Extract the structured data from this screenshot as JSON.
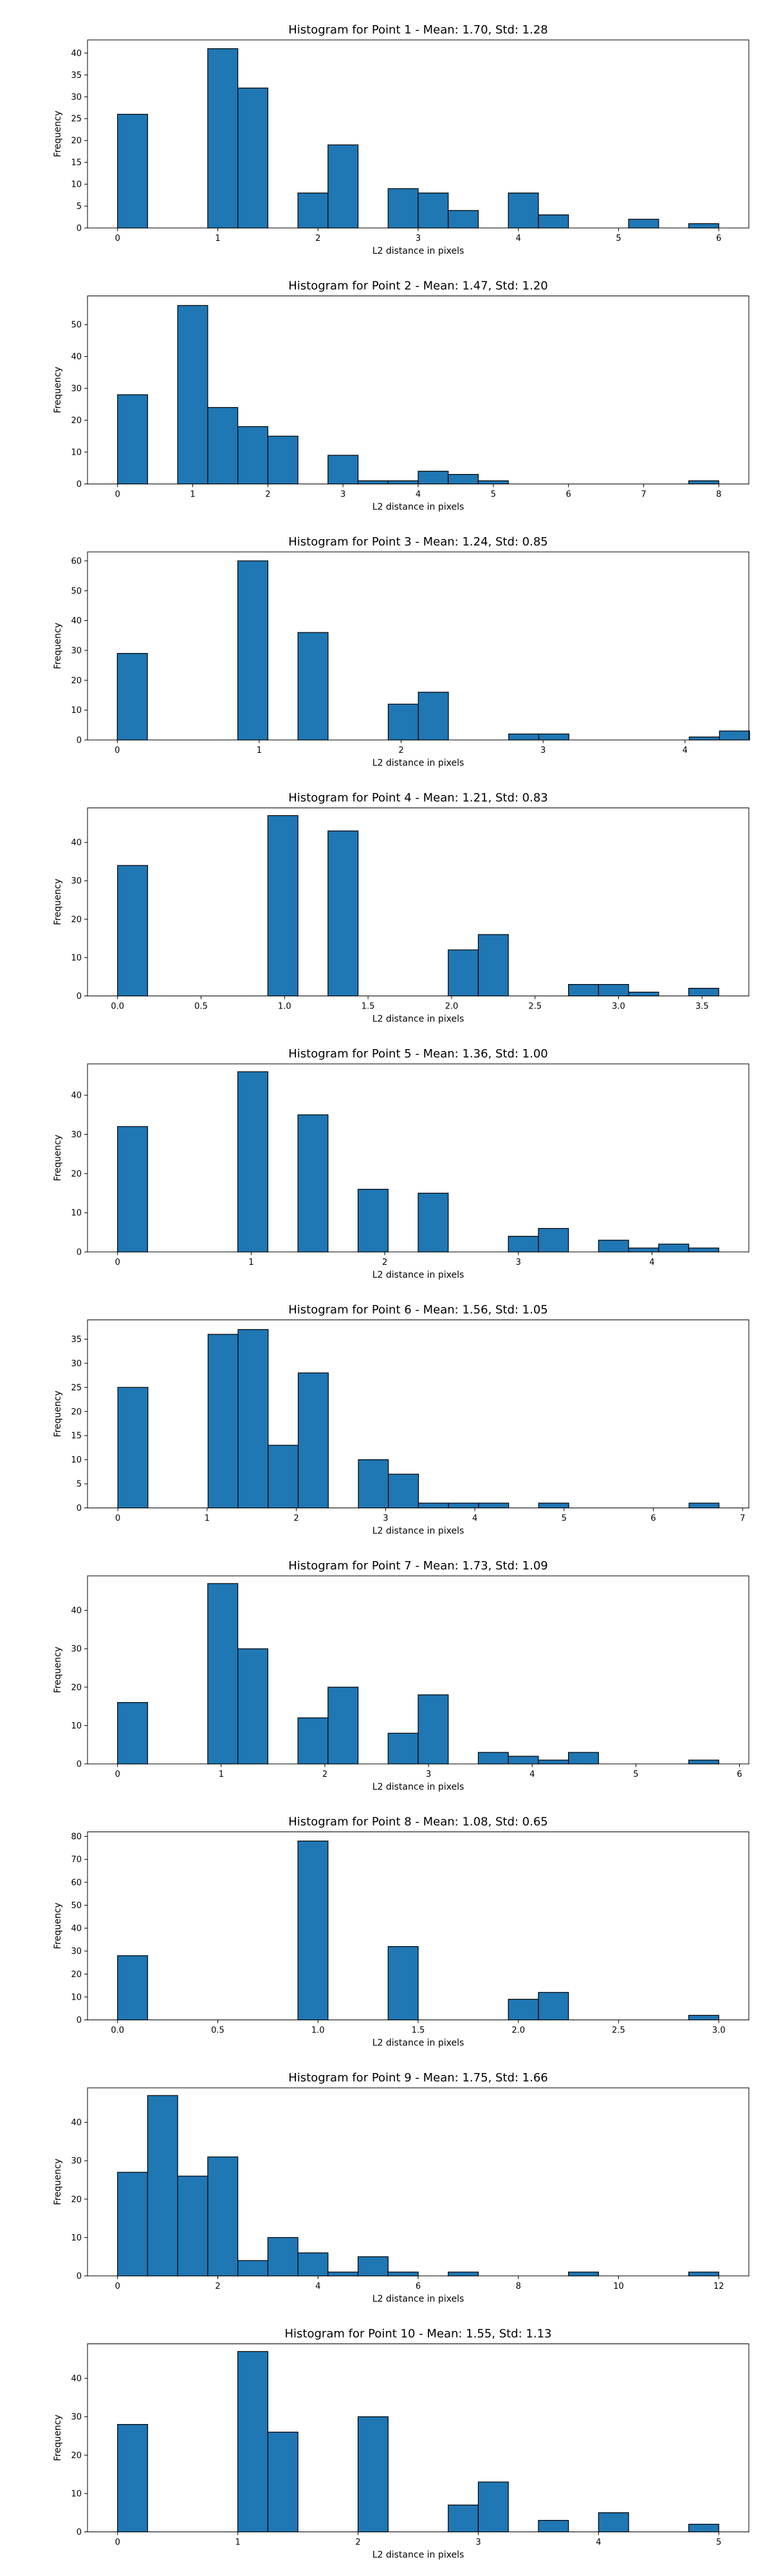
{
  "colors": {
    "bar_fill": "#1f77b4",
    "bar_edge": "#000000"
  },
  "chart_data": [
    {
      "type": "bar",
      "title": "Histogram for Point 1 - Mean: 1.70, Std: 1.28",
      "xlabel": "L2 distance in pixels",
      "ylabel": "Frequency",
      "xlim": [
        -0.3,
        6.3
      ],
      "ylim": [
        0,
        43
      ],
      "xticks": [
        0,
        1,
        2,
        3,
        4,
        5,
        6
      ],
      "yticks": [
        0,
        5,
        10,
        15,
        20,
        25,
        30,
        35,
        40
      ],
      "bins": [
        {
          "x0": 0,
          "x1": 0.3,
          "count": 26
        },
        {
          "x0": 0.9,
          "x1": 1.2,
          "count": 41
        },
        {
          "x0": 1.2,
          "x1": 1.5,
          "count": 32
        },
        {
          "x0": 1.8,
          "x1": 2.1,
          "count": 8
        },
        {
          "x0": 2.1,
          "x1": 2.4,
          "count": 19
        },
        {
          "x0": 2.7,
          "x1": 3.0,
          "count": 9
        },
        {
          "x0": 3.0,
          "x1": 3.3,
          "count": 8
        },
        {
          "x0": 3.3,
          "x1": 3.6,
          "count": 4
        },
        {
          "x0": 3.9,
          "x1": 4.2,
          "count": 8
        },
        {
          "x0": 4.2,
          "x1": 4.5,
          "count": 3
        },
        {
          "x0": 5.1,
          "x1": 5.4,
          "count": 2
        },
        {
          "x0": 5.7,
          "x1": 6.0,
          "count": 1
        }
      ]
    },
    {
      "type": "bar",
      "title": "Histogram for Point 2 - Mean: 1.47, Std: 1.20",
      "xlabel": "L2 distance in pixels",
      "ylabel": "Frequency",
      "xlim": [
        -0.4,
        8.4
      ],
      "ylim": [
        0,
        59
      ],
      "xticks": [
        0,
        1,
        2,
        3,
        4,
        5,
        6,
        7,
        8
      ],
      "yticks": [
        0,
        10,
        20,
        30,
        40,
        50
      ],
      "bins": [
        {
          "x0": 0,
          "x1": 0.4,
          "count": 28
        },
        {
          "x0": 0.8,
          "x1": 1.2,
          "count": 56
        },
        {
          "x0": 1.2,
          "x1": 1.6,
          "count": 24
        },
        {
          "x0": 1.6,
          "x1": 2.0,
          "count": 18
        },
        {
          "x0": 2.0,
          "x1": 2.4,
          "count": 15
        },
        {
          "x0": 2.8,
          "x1": 3.2,
          "count": 9
        },
        {
          "x0": 3.2,
          "x1": 3.6,
          "count": 1
        },
        {
          "x0": 3.6,
          "x1": 4.0,
          "count": 1
        },
        {
          "x0": 4.0,
          "x1": 4.4,
          "count": 4
        },
        {
          "x0": 4.4,
          "x1": 4.8,
          "count": 3
        },
        {
          "x0": 4.8,
          "x1": 5.2,
          "count": 1
        },
        {
          "x0": 7.6,
          "x1": 8.0,
          "count": 1
        }
      ]
    },
    {
      "type": "bar",
      "title": "Histogram for Point 3 - Mean: 1.24, Std: 0.85",
      "xlabel": "L2 distance in pixels",
      "ylabel": "Frequency",
      "xlim": [
        -0.21,
        4.45
      ],
      "ylim": [
        0,
        63
      ],
      "xticks": [
        0,
        1,
        2,
        3,
        4
      ],
      "yticks": [
        0,
        10,
        20,
        30,
        40,
        50,
        60
      ],
      "bins": [
        {
          "x0": 0,
          "x1": 0.212,
          "count": 29
        },
        {
          "x0": 0.849,
          "x1": 1.061,
          "count": 60
        },
        {
          "x0": 1.273,
          "x1": 1.485,
          "count": 36
        },
        {
          "x0": 1.909,
          "x1": 2.121,
          "count": 12
        },
        {
          "x0": 2.121,
          "x1": 2.333,
          "count": 16
        },
        {
          "x0": 2.758,
          "x1": 2.97,
          "count": 2
        },
        {
          "x0": 2.97,
          "x1": 3.182,
          "count": 2
        },
        {
          "x0": 4.03,
          "x1": 4.243,
          "count": 1
        },
        {
          "x0": 4.243,
          "x1": 4.455,
          "count": 3
        }
      ]
    },
    {
      "type": "bar",
      "title": "Histogram for Point 4 - Mean: 1.21, Std: 0.83",
      "xlabel": "L2 distance in pixels",
      "ylabel": "Frequency",
      "xlim": [
        -0.18,
        3.78
      ],
      "ylim": [
        0,
        49
      ],
      "xticks": [
        "0.0",
        "0.5",
        "1.0",
        "1.5",
        "2.0",
        "2.5",
        "3.0",
        "3.5"
      ],
      "yticks": [
        0,
        10,
        20,
        30,
        40
      ],
      "bins": [
        {
          "x0": 0,
          "x1": 0.18,
          "count": 34
        },
        {
          "x0": 0.9,
          "x1": 1.08,
          "count": 47
        },
        {
          "x0": 1.26,
          "x1": 1.44,
          "count": 43
        },
        {
          "x0": 1.98,
          "x1": 2.16,
          "count": 12
        },
        {
          "x0": 2.16,
          "x1": 2.34,
          "count": 16
        },
        {
          "x0": 2.7,
          "x1": 2.88,
          "count": 3
        },
        {
          "x0": 2.88,
          "x1": 3.06,
          "count": 3
        },
        {
          "x0": 3.06,
          "x1": 3.24,
          "count": 1
        },
        {
          "x0": 3.42,
          "x1": 3.6,
          "count": 2
        }
      ]
    },
    {
      "type": "bar",
      "title": "Histogram for Point 5 - Mean: 1.36, Std: 1.00",
      "xlabel": "L2 distance in pixels",
      "ylabel": "Frequency",
      "xlim": [
        -0.225,
        4.725
      ],
      "ylim": [
        0,
        48
      ],
      "xticks": [
        0,
        1,
        2,
        3,
        4
      ],
      "yticks": [
        0,
        10,
        20,
        30,
        40
      ],
      "bins": [
        {
          "x0": 0,
          "x1": 0.225,
          "count": 32
        },
        {
          "x0": 0.9,
          "x1": 1.125,
          "count": 46
        },
        {
          "x0": 1.35,
          "x1": 1.575,
          "count": 35
        },
        {
          "x0": 1.8,
          "x1": 2.025,
          "count": 16
        },
        {
          "x0": 2.25,
          "x1": 2.475,
          "count": 15
        },
        {
          "x0": 2.925,
          "x1": 3.15,
          "count": 4
        },
        {
          "x0": 3.15,
          "x1": 3.375,
          "count": 6
        },
        {
          "x0": 3.6,
          "x1": 3.825,
          "count": 3
        },
        {
          "x0": 3.825,
          "x1": 4.05,
          "count": 1
        },
        {
          "x0": 4.05,
          "x1": 4.275,
          "count": 2
        },
        {
          "x0": 4.275,
          "x1": 4.5,
          "count": 1
        }
      ]
    },
    {
      "type": "bar",
      "title": "Histogram for Point 6 - Mean: 1.56, Std: 1.05",
      "xlabel": "L2 distance in pixels",
      "ylabel": "Frequency",
      "xlim": [
        -0.34,
        7.07
      ],
      "ylim": [
        0,
        39
      ],
      "xticks": [
        0,
        1,
        2,
        3,
        4,
        5,
        6,
        7
      ],
      "yticks": [
        0,
        5,
        10,
        15,
        20,
        25,
        30,
        35
      ],
      "bins": [
        {
          "x0": 0,
          "x1": 0.337,
          "count": 25
        },
        {
          "x0": 1.011,
          "x1": 1.347,
          "count": 36
        },
        {
          "x0": 1.347,
          "x1": 1.684,
          "count": 37
        },
        {
          "x0": 1.684,
          "x1": 2.021,
          "count": 13
        },
        {
          "x0": 2.021,
          "x1": 2.358,
          "count": 28
        },
        {
          "x0": 2.695,
          "x1": 3.031,
          "count": 10
        },
        {
          "x0": 3.031,
          "x1": 3.368,
          "count": 7
        },
        {
          "x0": 3.368,
          "x1": 3.705,
          "count": 1
        },
        {
          "x0": 3.705,
          "x1": 4.042,
          "count": 1
        },
        {
          "x0": 4.042,
          "x1": 4.379,
          "count": 1
        },
        {
          "x0": 4.715,
          "x1": 5.052,
          "count": 1
        },
        {
          "x0": 6.4,
          "x1": 6.736,
          "count": 1
        }
      ]
    },
    {
      "type": "bar",
      "title": "Histogram for Point 7 - Mean: 1.73, Std: 1.09",
      "xlabel": "L2 distance in pixels",
      "ylabel": "Frequency",
      "xlim": [
        -0.29,
        6.09
      ],
      "ylim": [
        0,
        49
      ],
      "xticks": [
        0,
        1,
        2,
        3,
        4,
        5,
        6
      ],
      "yticks": [
        0,
        10,
        20,
        30,
        40
      ],
      "bins": [
        {
          "x0": 0,
          "x1": 0.29,
          "count": 16
        },
        {
          "x0": 0.87,
          "x1": 1.16,
          "count": 47
        },
        {
          "x0": 1.16,
          "x1": 1.45,
          "count": 30
        },
        {
          "x0": 1.74,
          "x1": 2.03,
          "count": 12
        },
        {
          "x0": 2.03,
          "x1": 2.32,
          "count": 20
        },
        {
          "x0": 2.61,
          "x1": 2.9,
          "count": 8
        },
        {
          "x0": 2.9,
          "x1": 3.19,
          "count": 18
        },
        {
          "x0": 3.48,
          "x1": 3.77,
          "count": 3
        },
        {
          "x0": 3.77,
          "x1": 4.06,
          "count": 2
        },
        {
          "x0": 4.06,
          "x1": 4.35,
          "count": 1
        },
        {
          "x0": 4.35,
          "x1": 4.64,
          "count": 3
        },
        {
          "x0": 5.51,
          "x1": 5.8,
          "count": 1
        }
      ]
    },
    {
      "type": "bar",
      "title": "Histogram for Point 8 - Mean: 1.08, Std: 0.65",
      "xlabel": "L2 distance in pixels",
      "ylabel": "Frequency",
      "xlim": [
        -0.15,
        3.15
      ],
      "ylim": [
        0,
        82
      ],
      "xticks": [
        "0.0",
        "0.5",
        "1.0",
        "1.5",
        "2.0",
        "2.5",
        "3.0"
      ],
      "yticks": [
        0,
        10,
        20,
        30,
        40,
        50,
        60,
        70,
        80
      ],
      "bins": [
        {
          "x0": 0,
          "x1": 0.15,
          "count": 28
        },
        {
          "x0": 0.9,
          "x1": 1.05,
          "count": 78
        },
        {
          "x0": 1.35,
          "x1": 1.5,
          "count": 32
        },
        {
          "x0": 1.95,
          "x1": 2.1,
          "count": 9
        },
        {
          "x0": 2.1,
          "x1": 2.25,
          "count": 12
        },
        {
          "x0": 2.85,
          "x1": 3.0,
          "count": 2
        }
      ]
    },
    {
      "type": "bar",
      "title": "Histogram for Point 9 - Mean: 1.75, Std: 1.66",
      "xlabel": "L2 distance in pixels",
      "ylabel": "Frequency",
      "xlim": [
        -0.6,
        12.6
      ],
      "ylim": [
        0,
        49
      ],
      "xticks": [
        0,
        2,
        4,
        6,
        8,
        10,
        12
      ],
      "yticks": [
        0,
        10,
        20,
        30,
        40
      ],
      "bins": [
        {
          "x0": 0,
          "x1": 0.6,
          "count": 27
        },
        {
          "x0": 0.6,
          "x1": 1.2,
          "count": 47
        },
        {
          "x0": 1.2,
          "x1": 1.8,
          "count": 26
        },
        {
          "x0": 1.8,
          "x1": 2.4,
          "count": 31
        },
        {
          "x0": 2.4,
          "x1": 3.0,
          "count": 4
        },
        {
          "x0": 3.0,
          "x1": 3.6,
          "count": 10
        },
        {
          "x0": 3.6,
          "x1": 4.2,
          "count": 6
        },
        {
          "x0": 4.2,
          "x1": 4.8,
          "count": 1
        },
        {
          "x0": 4.8,
          "x1": 5.4,
          "count": 5
        },
        {
          "x0": 5.4,
          "x1": 6.0,
          "count": 1
        },
        {
          "x0": 6.6,
          "x1": 7.2,
          "count": 1
        },
        {
          "x0": 9.0,
          "x1": 9.6,
          "count": 1
        },
        {
          "x0": 11.4,
          "x1": 12.0,
          "count": 1
        }
      ]
    },
    {
      "type": "bar",
      "title": "Histogram for Point 10 - Mean: 1.55, Std: 1.13",
      "xlabel": "L2 distance in pixels",
      "ylabel": "Frequency",
      "xlim": [
        -0.25,
        5.25
      ],
      "ylim": [
        0,
        49
      ],
      "xticks": [
        0,
        1,
        2,
        3,
        4,
        5
      ],
      "yticks": [
        0,
        10,
        20,
        30,
        40
      ],
      "bins": [
        {
          "x0": 0,
          "x1": 0.25,
          "count": 28
        },
        {
          "x0": 1.0,
          "x1": 1.25,
          "count": 47
        },
        {
          "x0": 1.25,
          "x1": 1.5,
          "count": 26
        },
        {
          "x0": 2.0,
          "x1": 2.25,
          "count": 30
        },
        {
          "x0": 2.75,
          "x1": 3.0,
          "count": 7
        },
        {
          "x0": 3.0,
          "x1": 3.25,
          "count": 13
        },
        {
          "x0": 3.5,
          "x1": 3.75,
          "count": 3
        },
        {
          "x0": 4.0,
          "x1": 4.25,
          "count": 5
        },
        {
          "x0": 4.75,
          "x1": 5.0,
          "count": 2
        }
      ]
    }
  ]
}
